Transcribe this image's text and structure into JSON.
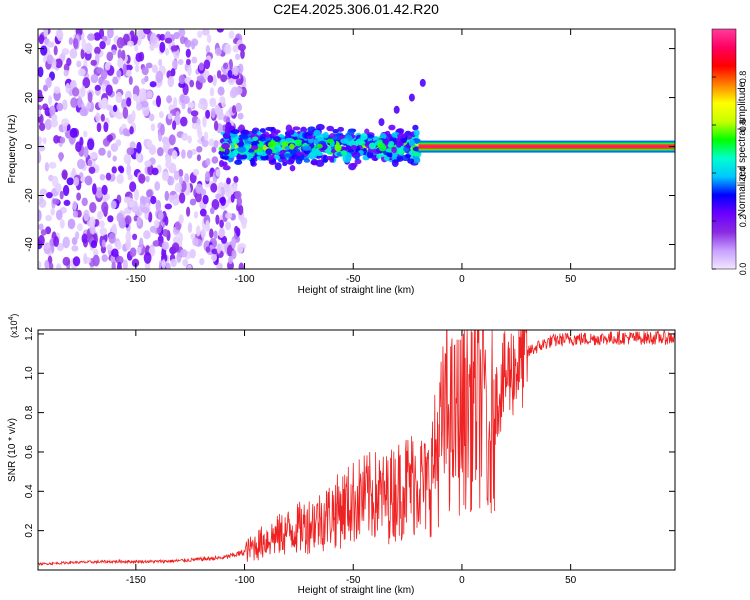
{
  "title": "C2E4.2025.306.01.42.R20",
  "chart_data": [
    {
      "type": "heatmap",
      "title": "C2E4.2025.306.01.42.R20",
      "xlabel": "Height of straight line (km)",
      "ylabel": "Frequency (Hz)",
      "xlim": [
        -195,
        98
      ],
      "ylim": [
        -50,
        48
      ],
      "xticks": [
        -150,
        -100,
        -50,
        0,
        50
      ],
      "xtick_labels": [
        "-150",
        "-100",
        "-50",
        "0",
        "50"
      ],
      "yticks": [
        -40,
        -20,
        0,
        20,
        40
      ],
      "ytick_labels": [
        "-40",
        "-20",
        "0",
        "20",
        "40"
      ],
      "colorbar": {
        "label": "Normalized spectral amplitude",
        "range": [
          0,
          1
        ],
        "ticks": [
          0.0,
          0.2,
          0.4,
          0.6,
          0.8
        ],
        "tick_labels": [
          "0.0",
          "0.2",
          "0.4",
          "0.6",
          "0.8"
        ],
        "colormap": [
          "#f2e6ff",
          "#c8a0ff",
          "#8a2be2",
          "#6a00ff",
          "#0000ff",
          "#00c8ff",
          "#00ffcc",
          "#00ff00",
          "#c8ff00",
          "#ffff00",
          "#ff8000",
          "#ff0000",
          "#ff0060",
          "#ff3c9c"
        ]
      },
      "features": {
        "carrier_line": {
          "x_from": -20,
          "x_to": 98,
          "freq": 0,
          "amplitude": 0.95
        },
        "dense_band": {
          "x_from": -110,
          "x_to": -20,
          "freq_center": 0,
          "freq_halfwidth": 6,
          "amplitude_range": [
            0.2,
            0.65
          ]
        },
        "noise_region": {
          "x_from": -195,
          "x_to": -100,
          "amplitude_range": [
            0.02,
            0.25
          ]
        },
        "rising_feature": {
          "x": [
            -37,
            -30,
            -23,
            -18
          ],
          "freq": [
            10,
            15,
            20,
            26
          ],
          "amplitude": 0.25
        }
      }
    },
    {
      "type": "line",
      "xlabel": "Height of straight line (km)",
      "ylabel": "SNR (10 * v/v)",
      "y_multiplier_label": "(x10",
      "y_multiplier_exponent": "4",
      "y_multiplier_close": ")",
      "xlim": [
        -195,
        98
      ],
      "ylim": [
        0,
        12200
      ],
      "xticks": [
        -150,
        -100,
        -50,
        0,
        50
      ],
      "xtick_labels": [
        "-150",
        "-100",
        "-50",
        "0",
        "50"
      ],
      "yticks": [
        2000,
        4000,
        6000,
        8000,
        10000,
        12000
      ],
      "ytick_labels": [
        "0.2",
        "0.4",
        "0.6",
        "0.8",
        "1.0",
        "1.2"
      ],
      "series": [
        {
          "name": "SNR",
          "color": "#ee2222",
          "x": [
            -195,
            -180,
            -160,
            -140,
            -130,
            -120,
            -110,
            -100,
            -95,
            -90,
            -85,
            -80,
            -75,
            -70,
            -65,
            -60,
            -55,
            -50,
            -45,
            -40,
            -35,
            -30,
            -25,
            -20,
            -16,
            -13,
            -10,
            -7,
            -4,
            -1,
            2,
            5,
            8,
            11,
            12,
            14,
            16,
            18,
            20,
            24,
            28,
            32,
            36,
            40,
            45,
            50,
            60,
            70,
            80,
            90,
            98
          ],
          "values": [
            300,
            380,
            430,
            430,
            470,
            550,
            620,
            900,
            1200,
            1500,
            1700,
            1900,
            2100,
            2300,
            2500,
            2800,
            3100,
            3400,
            3600,
            3700,
            3600,
            4000,
            4300,
            4500,
            4000,
            5300,
            6500,
            7800,
            7200,
            7600,
            8100,
            8500,
            8300,
            9000,
            3600,
            8000,
            8700,
            9300,
            9800,
            10300,
            10800,
            11200,
            11400,
            11600,
            11700,
            11750,
            11750,
            11800,
            11800,
            11800,
            11800
          ]
        }
      ]
    }
  ]
}
